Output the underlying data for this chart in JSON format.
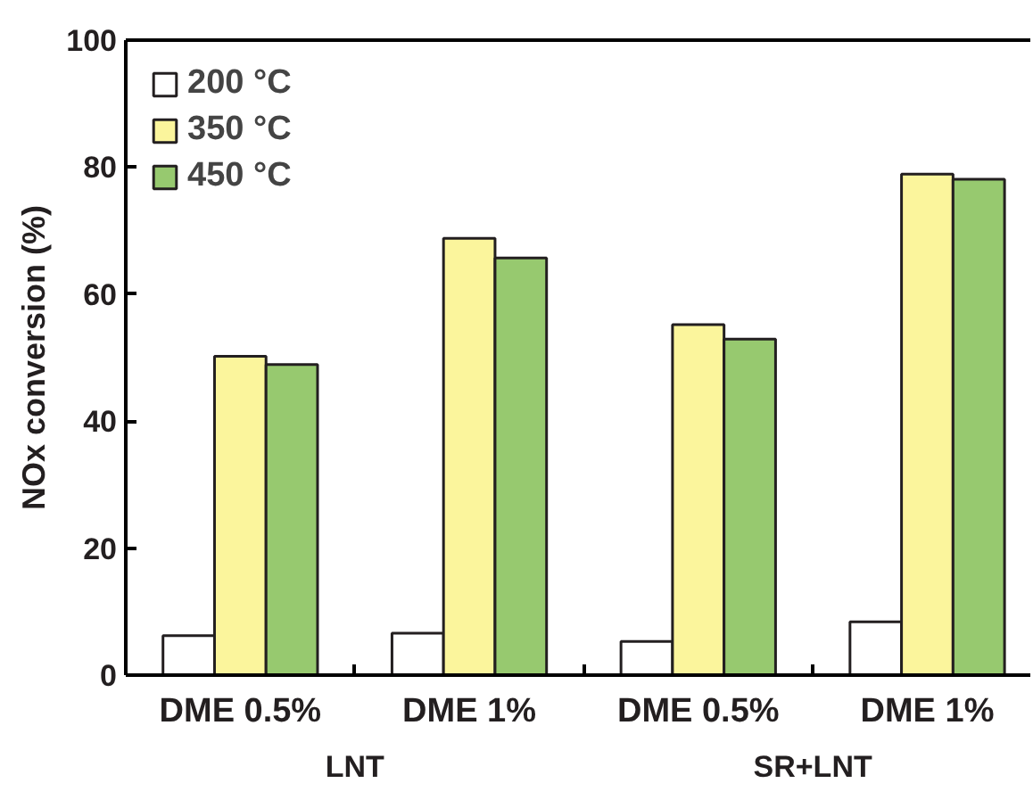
{
  "chart_data": {
    "type": "bar",
    "ylabel": "NOx conversion (%)",
    "categories": [
      "DME 0.5%",
      "DME 1%",
      "DME 0.5%",
      "DME 1%"
    ],
    "series": [
      {
        "name": "200 °C",
        "color": "#ffffff",
        "values": [
          6.2,
          6.6,
          5.3,
          8.4
        ]
      },
      {
        "name": "350 °C",
        "color": "#fbf59c",
        "values": [
          50.2,
          68.8,
          55.2,
          78.9
        ]
      },
      {
        "name": "450 °C",
        "color": "#97c96f",
        "values": [
          48.9,
          65.7,
          52.9,
          78.1
        ]
      }
    ],
    "ylim": [
      0,
      100
    ],
    "yticks": [
      0,
      20,
      40,
      60,
      80,
      100
    ],
    "grid": false,
    "legend": "top left",
    "annotations": [
      "LNT",
      "SR+LNT"
    ]
  }
}
